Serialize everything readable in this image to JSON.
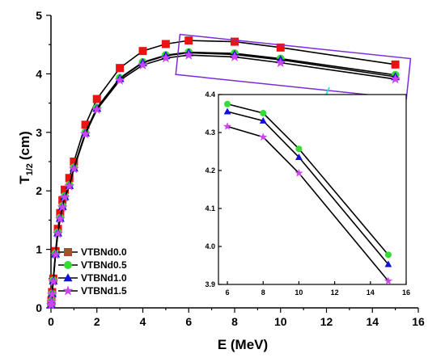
{
  "chart_data": [
    {
      "type": "line",
      "xlabel": "E (MeV)",
      "ylabel_base": "T",
      "ylabel_sub": "1/2",
      "ylabel_unit": "(cm)",
      "xlim": [
        0,
        16
      ],
      "ylim": [
        0,
        5
      ],
      "xticks": [
        "0",
        "2",
        "4",
        "6",
        "8",
        "10",
        "12",
        "14",
        "16"
      ],
      "yticks": [
        "0",
        "1",
        "2",
        "3",
        "4",
        "5"
      ],
      "grid": false,
      "legend_position": "lower-left",
      "series": [
        {
          "name": "VTBNd0.0",
          "marker": "square",
          "color": "#a0522d",
          "point_color": "#ee1111",
          "x": [
            0.01,
            0.02,
            0.05,
            0.1,
            0.2,
            0.3,
            0.4,
            0.5,
            0.6,
            0.8,
            1.0,
            1.5,
            2,
            3,
            4,
            5,
            6,
            8,
            10,
            15
          ],
          "y": [
            0.06,
            0.13,
            0.27,
            0.5,
            0.97,
            1.35,
            1.62,
            1.84,
            2.02,
            2.22,
            2.5,
            3.13,
            3.57,
            4.1,
            4.39,
            4.51,
            4.57,
            4.55,
            4.45,
            4.16
          ]
        },
        {
          "name": "VTBNd0.5",
          "marker": "circle",
          "color": "#33dd33",
          "x": [
            0.01,
            0.02,
            0.05,
            0.1,
            0.2,
            0.3,
            0.4,
            0.5,
            0.6,
            0.8,
            1.0,
            1.5,
            2,
            3,
            4,
            5,
            6,
            8,
            10,
            15
          ],
          "y": [
            0.05,
            0.11,
            0.24,
            0.47,
            0.93,
            1.29,
            1.54,
            1.74,
            1.91,
            2.1,
            2.4,
            3.0,
            3.42,
            3.93,
            4.2,
            4.32,
            4.37,
            4.35,
            4.26,
            3.98
          ]
        },
        {
          "name": "VTBNd1.0",
          "marker": "triangle",
          "color": "#1111dd",
          "x": [
            0.01,
            0.02,
            0.05,
            0.1,
            0.2,
            0.3,
            0.4,
            0.5,
            0.6,
            0.8,
            1.0,
            1.5,
            2,
            3,
            4,
            5,
            6,
            8,
            10,
            15
          ],
          "y": [
            0.05,
            0.11,
            0.24,
            0.46,
            0.92,
            1.28,
            1.53,
            1.73,
            1.9,
            2.09,
            2.39,
            2.99,
            3.41,
            3.92,
            4.19,
            4.31,
            4.36,
            4.33,
            4.24,
            3.95
          ]
        },
        {
          "name": "VTBNd1.5",
          "marker": "star",
          "color": "#cc44ee",
          "x": [
            0.01,
            0.02,
            0.05,
            0.1,
            0.2,
            0.3,
            0.4,
            0.5,
            0.6,
            0.8,
            1.0,
            1.5,
            2,
            3,
            4,
            5,
            6,
            8,
            10,
            15
          ],
          "y": [
            0.05,
            0.1,
            0.23,
            0.45,
            0.91,
            1.27,
            1.52,
            1.72,
            1.89,
            2.08,
            2.38,
            2.97,
            3.39,
            3.89,
            4.15,
            4.27,
            4.32,
            4.29,
            4.19,
            3.91
          ]
        }
      ],
      "highlight_box": {
        "x_range": [
          5.5,
          15.6
        ],
        "y_range": [
          3.78,
          4.47
        ]
      }
    },
    {
      "type": "line",
      "role": "inset",
      "xlim": [
        5.5,
        16
      ],
      "ylim": [
        3.9,
        4.4
      ],
      "xticks": [
        "6",
        "8",
        "10",
        "12",
        "14",
        "16"
      ],
      "yticks": [
        "3.9",
        "4.0",
        "4.1",
        "4.2",
        "4.3",
        "4.4"
      ],
      "series": [
        {
          "name": "VTBNd0.5",
          "marker": "circle",
          "color": "#33dd33",
          "x": [
            6,
            8,
            10,
            15
          ],
          "y": [
            4.375,
            4.351,
            4.257,
            3.978
          ]
        },
        {
          "name": "VTBNd1.0",
          "marker": "triangle",
          "color": "#1111dd",
          "x": [
            6,
            8,
            10,
            15
          ],
          "y": [
            4.355,
            4.331,
            4.235,
            3.953
          ]
        },
        {
          "name": "VTBNd1.5",
          "marker": "star",
          "color": "#cc44ee",
          "x": [
            6,
            8,
            10,
            15
          ],
          "y": [
            4.316,
            4.288,
            4.193,
            3.909
          ]
        }
      ]
    }
  ],
  "colors": {
    "highlight_box": "#7b2bd8",
    "arrow": "#33dddd"
  }
}
